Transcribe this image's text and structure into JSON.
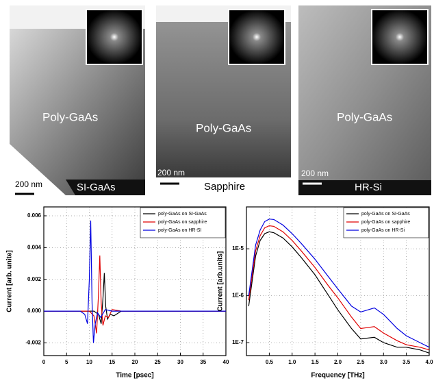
{
  "images": [
    {
      "label": "Poly-GaAs",
      "scale": "200 nm",
      "substrate": "SI-GaAs"
    },
    {
      "label": "Poly-GaAs",
      "scale": "200 nm",
      "substrate": "Sapphire"
    },
    {
      "label": "Poly-GaAs",
      "scale": "200 nm",
      "substrate": "HR-Si"
    }
  ],
  "chart_data": [
    {
      "type": "line",
      "x_label": "Time [psec]",
      "y_label": "Current [arb. unite]",
      "xlim": [
        0,
        40
      ],
      "xticks": [
        0,
        5,
        10,
        15,
        20,
        25,
        30,
        35,
        40
      ],
      "ylim": [
        -0.0028,
        0.00656
      ],
      "yticks": [
        -0.002,
        {
          "value": 0,
          "label": "0.000"
        },
        0.002,
        0.004,
        0.006
      ],
      "grid": true,
      "legend": "top-right",
      "series": [
        {
          "name": "poly-GaAs on SI-GaAs",
          "color": "#000000",
          "x": [
            0,
            11,
            12,
            12.6,
            13,
            13.3,
            13.6,
            14,
            14.6,
            15.4,
            17,
            40
          ],
          "values": [
            0,
            0,
            -0.0002,
            -0.0008,
            0.0008,
            0.0024,
            0.0003,
            -0.0005,
            -0.0002,
            -0.0003,
            0,
            0
          ]
        },
        {
          "name": "poly-GaAs on sapphire",
          "color": "#e00000",
          "x": [
            0,
            10,
            11,
            11.6,
            12,
            12.3,
            12.6,
            13,
            13.5,
            14.2,
            15,
            17,
            40
          ],
          "values": [
            0,
            0,
            -0.0003,
            -0.0014,
            0.001,
            0.0035,
            0.0005,
            -0.0009,
            -0.0003,
            -0.0004,
            0.0001,
            0,
            0
          ]
        },
        {
          "name": "poly-GaAs on HR-SI",
          "color": "#0000e0",
          "x": [
            0,
            8,
            9,
            9.6,
            10,
            10.3,
            10.6,
            10.9,
            11.3,
            11.8,
            12.5,
            13.5,
            15,
            40
          ],
          "values": [
            0,
            0,
            -0.0002,
            -0.0008,
            0.002,
            0.0057,
            0.0005,
            -0.002,
            -0.0008,
            -0.0001,
            -0.0004,
            0.0001,
            0,
            0
          ]
        }
      ]
    },
    {
      "type": "line",
      "x_label": "Frequency [THz]",
      "y_label": "Current [arb.units]",
      "xlim": [
        0,
        4
      ],
      "xticks": [
        0.5,
        {
          "value": 1,
          "label": "1.0"
        },
        1.5,
        {
          "value": 2,
          "label": "2.0"
        },
        2.5,
        {
          "value": 3,
          "label": "3.0"
        },
        3.5,
        {
          "value": 4,
          "label": "4.0"
        }
      ],
      "ylim": [
        5.3e-08,
        7.8e-05
      ],
      "log_y": true,
      "yticks": [
        {
          "value": 1e-07,
          "label": "1E-7"
        },
        {
          "value": 1e-06,
          "label": "1E-6"
        },
        {
          "value": 1e-05,
          "label": "1E-5"
        }
      ],
      "grid": true,
      "legend": "top-right",
      "series": [
        {
          "name": "poly-GaAs on SI-GaAs",
          "color": "#000000",
          "x": [
            0.05,
            0.2,
            0.3,
            0.4,
            0.5,
            0.6,
            0.8,
            1.0,
            1.2,
            1.5,
            1.8,
            2.0,
            2.3,
            2.5,
            2.8,
            3.0,
            3.3,
            3.5,
            3.8,
            4.0
          ],
          "values": [
            6e-07,
            7e-06,
            1.5e-05,
            2.1e-05,
            2.3e-05,
            2.2e-05,
            1.7e-05,
            1.1e-05,
            6.5e-06,
            2.8e-06,
            1e-06,
            5e-07,
            2e-07,
            1.2e-07,
            1.3e-07,
            1e-07,
            8e-08,
            8e-08,
            7e-08,
            6e-08
          ]
        },
        {
          "name": "poly-GaAs on sapphire",
          "color": "#e00000",
          "x": [
            0.05,
            0.2,
            0.3,
            0.4,
            0.5,
            0.6,
            0.8,
            1.0,
            1.2,
            1.5,
            1.8,
            2.0,
            2.3,
            2.5,
            2.8,
            3.0,
            3.3,
            3.5,
            3.8,
            4.0
          ],
          "values": [
            8e-07,
            9e-06,
            1.9e-05,
            2.8e-05,
            3.1e-05,
            3e-05,
            2.3e-05,
            1.5e-05,
            9e-06,
            4e-06,
            1.6e-06,
            9e-07,
            3.5e-07,
            2e-07,
            2.2e-07,
            1.6e-07,
            1.1e-07,
            9e-08,
            8e-08,
            7e-08
          ]
        },
        {
          "name": "poly-GaAs on HR-Si",
          "color": "#0000e0",
          "x": [
            0.05,
            0.2,
            0.3,
            0.4,
            0.5,
            0.6,
            0.8,
            1.0,
            1.2,
            1.5,
            1.8,
            2.0,
            2.3,
            2.5,
            2.8,
            3.0,
            3.3,
            3.5,
            3.8,
            4.0
          ],
          "values": [
            1e-06,
            1.2e-05,
            2.5e-05,
            3.8e-05,
            4.3e-05,
            4.2e-05,
            3.2e-05,
            2.1e-05,
            1.3e-05,
            6e-06,
            2.5e-06,
            1.4e-06,
            6e-07,
            4.5e-07,
            5.5e-07,
            4e-07,
            2e-07,
            1.4e-07,
            1e-07,
            8e-08
          ]
        }
      ]
    }
  ]
}
